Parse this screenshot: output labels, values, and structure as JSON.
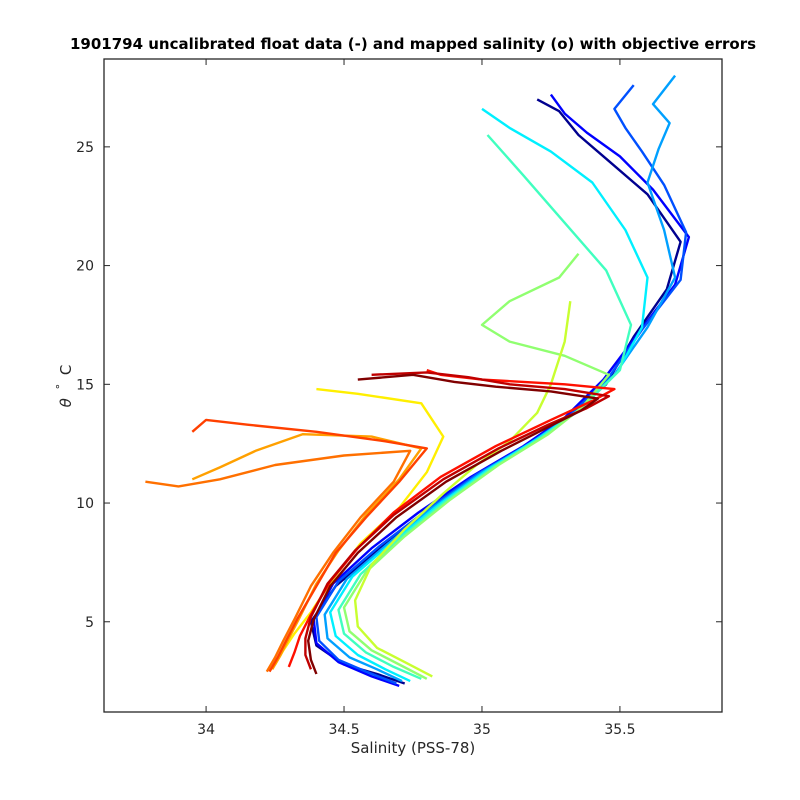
{
  "chart_data": {
    "type": "line",
    "title": "1901794 uncalibrated float data (-) and mapped salinity (o) with objective errors",
    "xlabel": "Salinity (PSS-78)",
    "ylabel_symbol": "θ",
    "ylabel_degree": "°",
    "ylabel_unit": "C",
    "xlim": [
      33.63,
      35.87
    ],
    "ylim": [
      1.2,
      28.7
    ],
    "xticks": [
      34,
      34.5,
      35,
      35.5
    ],
    "xtick_labels": [
      "34",
      "34.5",
      "35",
      "35.5"
    ],
    "yticks": [
      5,
      10,
      15,
      20,
      25
    ],
    "ytick_labels": [
      "5",
      "10",
      "15",
      "20",
      "25"
    ],
    "grid": false,
    "legend": "none",
    "series_colormap": "jet",
    "series": [
      {
        "color": "#00008f",
        "x": [
          34.72,
          34.62,
          34.5,
          34.4,
          34.38,
          34.47,
          34.62,
          34.78,
          34.97,
          35.17,
          35.3,
          35.45,
          35.55,
          35.67,
          35.72,
          35.6,
          35.45,
          35.35,
          35.28,
          35.2
        ],
        "y": [
          2.4,
          2.8,
          3.2,
          4.0,
          5.0,
          6.5,
          8.0,
          9.5,
          11.0,
          12.5,
          13.5,
          15.0,
          17.0,
          19.0,
          21.0,
          23.0,
          24.5,
          25.5,
          26.5,
          27.0
        ]
      },
      {
        "color": "#0000ff",
        "x": [
          34.7,
          34.6,
          34.48,
          34.4,
          34.39,
          34.46,
          34.6,
          34.77,
          34.96,
          35.15,
          35.3,
          35.44,
          35.57,
          35.7,
          35.75,
          35.62,
          35.5,
          35.38,
          35.3,
          35.25
        ],
        "y": [
          2.3,
          2.7,
          3.3,
          4.1,
          5.1,
          6.6,
          8.1,
          9.6,
          11.1,
          12.4,
          13.6,
          15.2,
          17.2,
          19.2,
          21.2,
          23.2,
          24.6,
          25.6,
          26.4,
          27.2
        ]
      },
      {
        "color": "#0050ff",
        "x": [
          34.69,
          34.58,
          34.48,
          34.41,
          34.4,
          34.48,
          34.63,
          34.8,
          34.98,
          35.17,
          35.32,
          35.46,
          35.58,
          35.72,
          35.74,
          35.66,
          35.58,
          35.52,
          35.48,
          35.55
        ],
        "y": [
          2.4,
          2.9,
          3.4,
          4.2,
          5.2,
          6.7,
          8.2,
          9.7,
          11.2,
          12.5,
          13.7,
          15.3,
          17.3,
          19.4,
          21.4,
          23.4,
          24.8,
          25.8,
          26.6,
          27.6
        ]
      },
      {
        "color": "#00a0ff",
        "x": [
          34.71,
          34.62,
          34.52,
          34.44,
          34.43,
          34.51,
          34.66,
          34.82,
          35.0,
          35.19,
          35.34,
          35.48,
          35.6,
          35.7,
          35.66,
          35.6,
          35.64,
          35.68,
          35.62,
          35.7
        ],
        "y": [
          2.5,
          3.0,
          3.5,
          4.3,
          5.3,
          6.8,
          8.3,
          9.8,
          11.3,
          12.6,
          13.8,
          15.4,
          17.4,
          19.5,
          21.5,
          23.5,
          24.9,
          26.0,
          26.8,
          28.0
        ]
      },
      {
        "color": "#00f0ff",
        "x": [
          34.74,
          34.65,
          34.55,
          34.47,
          34.45,
          34.53,
          34.68,
          34.84,
          35.02,
          35.2,
          35.35,
          35.49,
          35.58,
          35.6,
          35.52,
          35.4,
          35.25,
          35.1,
          35.0
        ],
        "y": [
          2.5,
          3.0,
          3.6,
          4.4,
          5.4,
          6.9,
          8.4,
          9.9,
          11.4,
          12.7,
          13.9,
          15.5,
          17.4,
          19.5,
          21.5,
          23.5,
          24.8,
          25.8,
          26.6
        ]
      },
      {
        "color": "#40ffbf",
        "x": [
          34.78,
          34.68,
          34.58,
          34.5,
          34.48,
          34.56,
          34.7,
          34.86,
          35.04,
          35.22,
          35.36,
          35.5,
          35.54,
          35.45,
          35.3,
          35.15,
          35.02
        ],
        "y": [
          2.6,
          3.1,
          3.7,
          4.5,
          5.5,
          7.0,
          8.5,
          10.0,
          11.5,
          12.8,
          14.0,
          15.6,
          17.5,
          19.8,
          21.8,
          23.8,
          25.5
        ]
      },
      {
        "color": "#90ff70",
        "x": [
          34.8,
          34.7,
          34.6,
          34.52,
          34.5,
          34.58,
          34.72,
          34.88,
          35.06,
          35.24,
          35.36,
          35.46,
          35.3,
          35.1,
          35.0,
          35.1,
          35.28,
          35.35
        ],
        "y": [
          2.6,
          3.2,
          3.8,
          4.6,
          5.6,
          7.1,
          8.6,
          10.1,
          11.6,
          12.9,
          14.0,
          15.4,
          16.2,
          16.8,
          17.5,
          18.5,
          19.5,
          20.5
        ]
      },
      {
        "color": "#c8ff30",
        "x": [
          34.82,
          34.72,
          34.62,
          34.55,
          34.54,
          34.6,
          34.72,
          34.86,
          34.98,
          35.1,
          35.2,
          35.25,
          35.3,
          35.32
        ],
        "y": [
          2.7,
          3.3,
          3.9,
          4.8,
          5.9,
          7.4,
          8.9,
          10.4,
          11.6,
          12.6,
          13.8,
          15.0,
          16.8,
          18.5
        ]
      },
      {
        "color": "#ffef00",
        "x": [
          34.25,
          34.28,
          34.32,
          34.38,
          34.46,
          34.56,
          34.7,
          34.8,
          34.86,
          34.78,
          34.55,
          34.4
        ],
        "y": [
          3.2,
          3.8,
          4.5,
          5.4,
          6.8,
          8.3,
          9.8,
          11.3,
          12.8,
          14.2,
          14.6,
          14.8
        ]
      },
      {
        "color": "#ffa000",
        "x": [
          34.24,
          34.27,
          34.3,
          34.34,
          34.4,
          34.48,
          34.58,
          34.7,
          34.78,
          34.6,
          34.35,
          34.18,
          34.05,
          33.95
        ],
        "y": [
          3.0,
          3.6,
          4.3,
          5.2,
          6.6,
          8.0,
          9.5,
          11.0,
          12.3,
          12.8,
          12.9,
          12.2,
          11.5,
          11.0
        ]
      },
      {
        "color": "#ff7000",
        "x": [
          34.22,
          34.25,
          34.28,
          34.32,
          34.38,
          34.46,
          34.56,
          34.68,
          34.74,
          34.5,
          34.25,
          34.05,
          33.9,
          33.78
        ],
        "y": [
          2.9,
          3.5,
          4.2,
          5.1,
          6.5,
          7.9,
          9.4,
          10.9,
          12.2,
          12.0,
          11.6,
          11.0,
          10.7,
          10.9
        ]
      },
      {
        "color": "#ff4000",
        "x": [
          34.23,
          34.26,
          34.29,
          34.33,
          34.4,
          34.47,
          34.58,
          34.7,
          34.8,
          34.65,
          34.4,
          34.15,
          34.0,
          33.95
        ],
        "y": [
          2.9,
          3.5,
          4.2,
          5.1,
          6.5,
          7.9,
          9.4,
          10.9,
          12.3,
          12.6,
          13.0,
          13.3,
          13.5,
          13.0
        ]
      },
      {
        "color": "#ff1000",
        "x": [
          34.3,
          34.32,
          34.34,
          34.38,
          34.45,
          34.55,
          34.68,
          34.85,
          35.05,
          35.25,
          35.4,
          35.48,
          35.3,
          35.0,
          34.85,
          34.8
        ],
        "y": [
          3.1,
          3.7,
          4.4,
          5.3,
          6.7,
          8.1,
          9.6,
          11.1,
          12.4,
          13.5,
          14.3,
          14.8,
          15.0,
          15.2,
          15.4,
          15.6
        ]
      },
      {
        "color": "#c00000",
        "x": [
          34.38,
          34.36,
          34.36,
          34.38,
          34.44,
          34.54,
          34.68,
          34.86,
          35.06,
          35.24,
          35.38,
          35.46,
          35.3,
          35.1,
          34.95,
          34.8,
          34.6
        ],
        "y": [
          3.0,
          3.6,
          4.3,
          5.2,
          6.6,
          8.0,
          9.5,
          11.0,
          12.3,
          13.3,
          14.0,
          14.5,
          14.8,
          15.0,
          15.3,
          15.5,
          15.4
        ]
      },
      {
        "color": "#800000",
        "x": [
          34.4,
          34.38,
          34.37,
          34.39,
          34.45,
          34.55,
          34.69,
          34.87,
          35.07,
          35.24,
          35.36,
          35.42,
          35.25,
          35.05,
          34.9,
          34.75,
          34.55
        ],
        "y": [
          2.8,
          3.4,
          4.2,
          5.1,
          6.5,
          7.9,
          9.4,
          10.9,
          12.2,
          13.2,
          13.9,
          14.4,
          14.7,
          14.9,
          15.1,
          15.4,
          15.2
        ]
      }
    ]
  }
}
